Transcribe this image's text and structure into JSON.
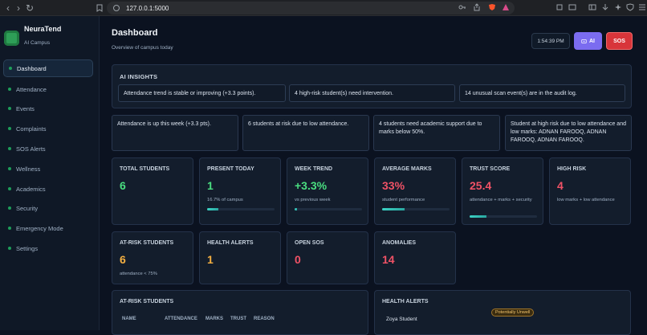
{
  "browser": {
    "url": "127.0.0.1:5000"
  },
  "sidebar": {
    "brand": "NeuraTend",
    "subtitle": "AI Campus",
    "items": [
      {
        "label": "Dashboard",
        "active": true
      },
      {
        "label": "Attendance"
      },
      {
        "label": "Events"
      },
      {
        "label": "Complaints"
      },
      {
        "label": "SOS Alerts"
      },
      {
        "label": "Wellness"
      },
      {
        "label": "Academics"
      },
      {
        "label": "Security"
      },
      {
        "label": "Emergency Mode"
      },
      {
        "label": "Settings"
      }
    ]
  },
  "header": {
    "title": "Dashboard",
    "subtitle": "Overview of campus today",
    "time": "1:54:39 PM",
    "ai_label": "AI",
    "sos_label": "SOS"
  },
  "insights": {
    "title": "AI INSIGHTS",
    "items": [
      "Attendance trend is stable or improving (+3.3 points).",
      "4 high-risk student(s) need intervention.",
      "14 unusual scan event(s) are in the audit log."
    ]
  },
  "announcements": [
    "Attendance is up this week (+3.3 pts).",
    "6 students at risk due to low attendance.",
    "4 students need academic support due to marks below 50%.",
    "Student at high risk due to low attendance and low marks: ADNAN FAROOQ, ADNAN FAROOQ, ADNAN FAROOQ."
  ],
  "stats": [
    {
      "label": "TOTAL STUDENTS",
      "value": "6",
      "note": "",
      "color": "#4ade80"
    },
    {
      "label": "PRESENT TODAY",
      "value": "1",
      "note": "16.7% of campus",
      "color": "#4ade80",
      "progress": 0.167
    },
    {
      "label": "WEEK TREND",
      "value": "+3.3%",
      "note": "vs previous week",
      "color": "#4ade80",
      "progress": 0.03
    },
    {
      "label": "AVERAGE MARKS",
      "value": "33%",
      "note": "student performance",
      "color": "#f05266",
      "progress": 0.33
    },
    {
      "label": "TRUST SCORE",
      "value": "25.4",
      "note": "attendance + marks + security",
      "color": "#f05266",
      "progress": 0.254
    },
    {
      "label": "HIGH RISK",
      "value": "4",
      "note": "low marks + low attendance",
      "color": "#f05266"
    },
    {
      "label": "AT-RISK STUDENTS",
      "value": "6",
      "note": "attendance < 75%",
      "color": "#f5b041"
    },
    {
      "label": "HEALTH ALERTS",
      "value": "1",
      "note": "",
      "color": "#f5b041"
    },
    {
      "label": "OPEN SOS",
      "value": "0",
      "note": "",
      "color": "#f05266"
    },
    {
      "label": "ANOMALIES",
      "value": "14",
      "note": "",
      "color": "#f05266"
    }
  ],
  "at_risk": {
    "title": "AT-RISK STUDENTS",
    "columns": [
      "NAME",
      "ATTENDANCE",
      "MARKS",
      "TRUST",
      "REASON"
    ]
  },
  "health_alerts": {
    "title": "HEALTH ALERTS",
    "rows": [
      {
        "name": "Zoya Student",
        "status": "Potentially Unwell"
      }
    ]
  }
}
